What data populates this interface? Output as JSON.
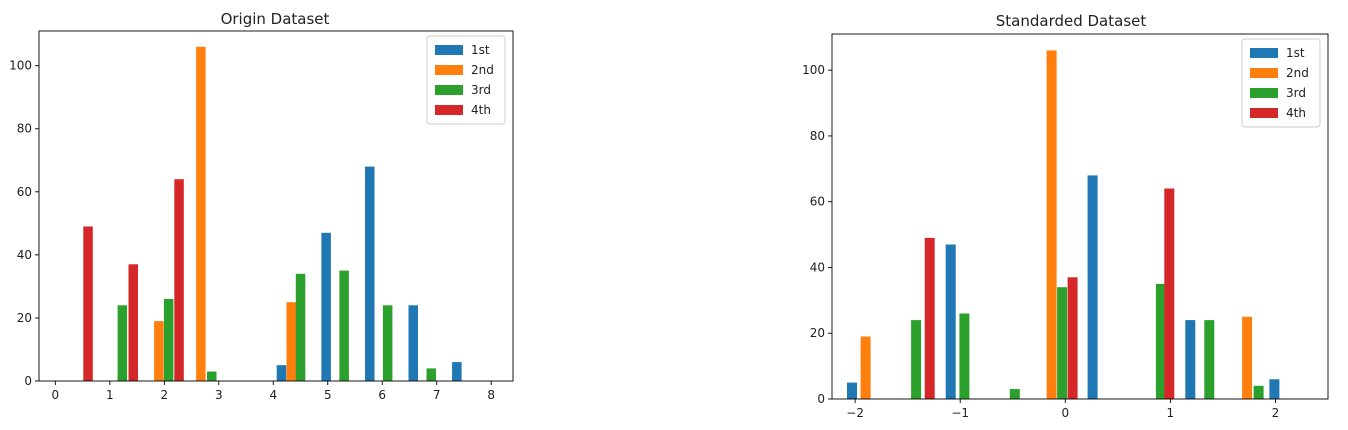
{
  "chart_data": [
    {
      "type": "bar",
      "title": "Origin Dataset",
      "xlabel": "",
      "ylabel": "",
      "xlim": [
        -0.3,
        8.4
      ],
      "ylim": [
        0,
        111
      ],
      "xticks": [
        0,
        1,
        2,
        3,
        4,
        5,
        6,
        7,
        8
      ],
      "yticks": [
        0,
        20,
        40,
        60,
        80,
        100
      ],
      "legend_position": "top-right",
      "series": [
        {
          "name": "1st",
          "color": "#1f77b4",
          "points": [
            {
              "x": 4.15,
              "y": 5
            },
            {
              "x": 4.97,
              "y": 47
            },
            {
              "x": 5.77,
              "y": 68
            },
            {
              "x": 6.57,
              "y": 24
            },
            {
              "x": 7.37,
              "y": 6
            }
          ]
        },
        {
          "name": "2nd",
          "color": "#ff7f0e",
          "points": [
            {
              "x": 1.9,
              "y": 19
            },
            {
              "x": 2.67,
              "y": 106
            },
            {
              "x": 4.33,
              "y": 25
            }
          ]
        },
        {
          "name": "3rd",
          "color": "#2ca02c",
          "points": [
            {
              "x": 1.23,
              "y": 24
            },
            {
              "x": 2.08,
              "y": 26
            },
            {
              "x": 2.87,
              "y": 3
            },
            {
              "x": 4.5,
              "y": 34
            },
            {
              "x": 5.3,
              "y": 35
            },
            {
              "x": 6.1,
              "y": 24
            },
            {
              "x": 6.9,
              "y": 4
            }
          ]
        },
        {
          "name": "4th",
          "color": "#d62728",
          "points": [
            {
              "x": 0.6,
              "y": 49
            },
            {
              "x": 1.43,
              "y": 37
            },
            {
              "x": 2.27,
              "y": 64
            }
          ]
        }
      ]
    },
    {
      "type": "bar",
      "title": "Standarded Dataset",
      "xlabel": "",
      "ylabel": "",
      "xlim": [
        -2.22,
        2.5
      ],
      "ylim": [
        0,
        111
      ],
      "xticks": [
        "−2",
        "−1",
        "0",
        "1",
        "2"
      ],
      "xtick_values": [
        -2,
        -1,
        0,
        1,
        2
      ],
      "yticks": [
        0,
        20,
        40,
        60,
        80,
        100
      ],
      "legend_position": "top-right",
      "series": [
        {
          "name": "1st",
          "color": "#1f77b4",
          "points": [
            {
              "x": -2.03,
              "y": 5
            },
            {
              "x": -1.09,
              "y": 47
            },
            {
              "x": 0.26,
              "y": 68
            },
            {
              "x": 1.19,
              "y": 24
            },
            {
              "x": 1.99,
              "y": 6
            }
          ]
        },
        {
          "name": "2nd",
          "color": "#ff7f0e",
          "points": [
            {
              "x": -1.9,
              "y": 19
            },
            {
              "x": -0.13,
              "y": 106
            },
            {
              "x": 1.73,
              "y": 25
            }
          ]
        },
        {
          "name": "3rd",
          "color": "#2ca02c",
          "points": [
            {
              "x": -1.42,
              "y": 24
            },
            {
              "x": -0.96,
              "y": 26
            },
            {
              "x": -0.48,
              "y": 3
            },
            {
              "x": -0.03,
              "y": 34
            },
            {
              "x": 0.91,
              "y": 35
            },
            {
              "x": 1.37,
              "y": 24
            },
            {
              "x": 1.84,
              "y": 4
            }
          ]
        },
        {
          "name": "4th",
          "color": "#d62728",
          "points": [
            {
              "x": -1.29,
              "y": 49
            },
            {
              "x": 0.07,
              "y": 37
            },
            {
              "x": 0.99,
              "y": 64
            }
          ]
        }
      ]
    }
  ]
}
